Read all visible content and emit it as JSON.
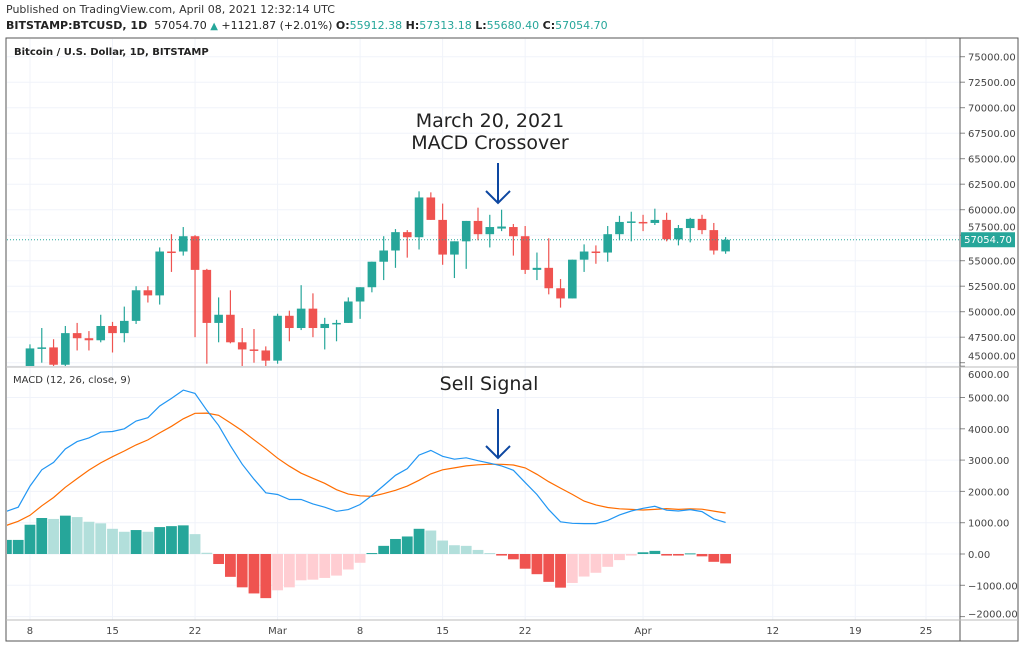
{
  "header": {
    "published": "Published on TradingView.com, April 08, 2021 12:32:14 UTC",
    "symbol": "BITSTAMP:BTCUSD, 1D",
    "last": "57054.70",
    "change": "+1121.87 (+2.01%)",
    "o_label": "O:",
    "o": "55912.38",
    "h_label": "H:",
    "h": "57313.18",
    "l_label": "L:",
    "l": "55680.40",
    "c_label": "C:",
    "c": "57054.70"
  },
  "chart_title": "Bitcoin / U.S. Dollar, 1D, BITSTAMP",
  "macd_title": "MACD (12, 26, close, 9)",
  "annotations": {
    "top_line1": "March 20, 2021",
    "top_line2": "MACD Crossover",
    "bottom": "Sell Signal"
  },
  "price_label": "57054.70",
  "colors": {
    "up": "#26a69a",
    "down": "#ef5350",
    "up_light": "#b2dfdb",
    "down_light": "#ffcdd2",
    "macd": "#2196f3",
    "signal": "#ff6d00",
    "arrow": "#0d47a1"
  },
  "chart_data": [
    {
      "type": "candlestick",
      "title": "Bitcoin / U.S. Dollar, 1D, BITSTAMP",
      "ylim": [
        45000,
        75000
      ],
      "y_ticks": [
        "75000.00",
        "72500.00",
        "70000.00",
        "67500.00",
        "65000.00",
        "62500.00",
        "60000.00",
        "57500.00",
        "55000.00",
        "52500.00",
        "50000.00",
        "47500.00",
        "45000.00"
      ],
      "x_ticks": [
        {
          "label": "8",
          "day": 2
        },
        {
          "label": "15",
          "day": 9
        },
        {
          "label": "22",
          "day": 16
        },
        {
          "label": "Mar",
          "day": 23
        },
        {
          "label": "8",
          "day": 30
        },
        {
          "label": "15",
          "day": 37
        },
        {
          "label": "22",
          "day": 44
        },
        {
          "label": "Apr",
          "day": 54
        },
        {
          "label": "12",
          "day": 65
        },
        {
          "label": "19",
          "day": 72
        },
        {
          "label": "25",
          "day": 78
        }
      ],
      "first_day_index": 2,
      "dates_start": "Feb 8, 2021",
      "ohlc": [
        [
          38900,
          46800,
          38000,
          46400
        ],
        [
          46400,
          48400,
          45000,
          46500
        ],
        [
          46500,
          47300,
          43800,
          44800
        ],
        [
          44800,
          48600,
          43800,
          47900
        ],
        [
          47900,
          48900,
          46200,
          47400
        ],
        [
          47400,
          48100,
          46200,
          47200
        ],
        [
          47200,
          49700,
          47000,
          48600
        ],
        [
          48600,
          49000,
          46000,
          47900
        ],
        [
          47900,
          50500,
          47000,
          49100
        ],
        [
          49100,
          52500,
          48800,
          52100
        ],
        [
          52100,
          52500,
          50900,
          51600
        ],
        [
          51600,
          56300,
          50700,
          55900
        ],
        [
          55900,
          57600,
          53900,
          55850
        ],
        [
          55900,
          58300,
          55500,
          57400
        ],
        [
          57400,
          57500,
          47500,
          54100
        ],
        [
          54100,
          54200,
          44900,
          48900
        ],
        [
          48900,
          51400,
          47000,
          49700
        ],
        [
          49700,
          52100,
          46900,
          47000
        ],
        [
          47000,
          48400,
          44200,
          46300
        ],
        [
          46300,
          48300,
          45000,
          46200
        ],
        [
          46200,
          46600,
          43000,
          45200
        ],
        [
          45200,
          49800,
          44900,
          49600
        ],
        [
          49600,
          50100,
          47100,
          48400
        ],
        [
          48400,
          52600,
          48200,
          50300
        ],
        [
          50300,
          51800,
          47500,
          48400
        ],
        [
          48400,
          49400,
          46300,
          48800
        ],
        [
          48800,
          49200,
          47100,
          48900
        ],
        [
          48900,
          51400,
          48900,
          51000
        ],
        [
          51000,
          52400,
          49300,
          52400
        ],
        [
          52400,
          54900,
          51900,
          54900
        ],
        [
          54900,
          57400,
          53100,
          56000
        ],
        [
          56000,
          58100,
          54300,
          57800
        ],
        [
          57800,
          58000,
          55300,
          57300
        ],
        [
          57300,
          61800,
          56100,
          61200
        ],
        [
          61200,
          61700,
          59000,
          59000
        ],
        [
          59000,
          60600,
          54600,
          55600
        ],
        [
          55600,
          56900,
          53300,
          56900
        ],
        [
          56900,
          58900,
          54200,
          58900
        ],
        [
          58900,
          60200,
          57000,
          57600
        ],
        [
          57600,
          59500,
          56300,
          58300
        ],
        [
          58150,
          60000,
          57900,
          58350
        ],
        [
          58300,
          58600,
          55500,
          57400
        ],
        [
          57400,
          58400,
          53700,
          54100
        ],
        [
          54100,
          55800,
          53100,
          54300
        ],
        [
          54300,
          57200,
          51700,
          52300
        ],
        [
          52300,
          53200,
          50400,
          51300
        ],
        [
          51300,
          55100,
          51300,
          55100
        ],
        [
          55100,
          56600,
          53900,
          55900
        ],
        [
          55900,
          56500,
          54700,
          55800
        ],
        [
          55800,
          58400,
          54900,
          57600
        ],
        [
          57600,
          59400,
          57000,
          58800
        ],
        [
          58800,
          59800,
          56900,
          58850
        ],
        [
          58800,
          59500,
          57900,
          58700
        ],
        [
          58700,
          60100,
          58500,
          59000
        ],
        [
          59000,
          59700,
          56900,
          57100
        ],
        [
          57100,
          58500,
          56500,
          58200
        ],
        [
          58200,
          59200,
          56800,
          59100
        ],
        [
          59100,
          59500,
          57600,
          58000
        ],
        [
          58000,
          58700,
          55600,
          56000
        ],
        [
          55912.38,
          57313.18,
          55680.4,
          57054.7
        ]
      ]
    },
    {
      "type": "line+bar",
      "title": "MACD (12, 26, close, 9)",
      "ylim": [
        -2000,
        6000
      ],
      "y_ticks": [
        "6000.00",
        "5000.00",
        "4000.00",
        "3000.00",
        "2000.00",
        "1000.00",
        "0.00",
        "−1000.00",
        "−2000.00"
      ],
      "first_day_index": 0,
      "dates_start": "Feb 6, 2021",
      "macd": [
        1365,
        1495,
        2170,
        2690,
        2925,
        3355,
        3590,
        3710,
        3890,
        3915,
        4000,
        4250,
        4355,
        4730,
        4970,
        5235,
        5130,
        4590,
        4110,
        3460,
        2870,
        2390,
        1955,
        1900,
        1740,
        1740,
        1600,
        1495,
        1365,
        1420,
        1580,
        1870,
        2190,
        2515,
        2730,
        3160,
        3310,
        3120,
        3030,
        3075,
        2980,
        2900,
        2815,
        2675,
        2280,
        1900,
        1420,
        1030,
        980,
        970,
        970,
        1075,
        1250,
        1375,
        1460,
        1525,
        1400,
        1375,
        1420,
        1355,
        1120,
        1010
      ],
      "signal": [
        915,
        1045,
        1235,
        1540,
        1805,
        2130,
        2410,
        2680,
        2910,
        3110,
        3290,
        3485,
        3645,
        3870,
        4080,
        4320,
        4495,
        4500,
        4430,
        4190,
        3935,
        3650,
        3365,
        3060,
        2805,
        2580,
        2420,
        2260,
        2055,
        1915,
        1860,
        1840,
        1930,
        2035,
        2170,
        2355,
        2560,
        2690,
        2750,
        2815,
        2850,
        2870,
        2865,
        2845,
        2750,
        2545,
        2310,
        2105,
        1905,
        1690,
        1570,
        1485,
        1445,
        1425,
        1405,
        1425,
        1450,
        1425,
        1440,
        1430,
        1370,
        1310
      ],
      "histogram": [
        450,
        450,
        935,
        1150,
        1120,
        1225,
        1180,
        1030,
        980,
        805,
        710,
        765,
        710,
        860,
        890,
        915,
        635,
        40,
        -320,
        -730,
        -1065,
        -1260,
        -1410,
        -1160,
        -1065,
        -840,
        -820,
        -765,
        -690,
        -495,
        -280,
        30,
        260,
        480,
        560,
        805,
        750,
        430,
        280,
        260,
        130,
        30,
        -50,
        -170,
        -470,
        -645,
        -890,
        -1075,
        -925,
        -720,
        -600,
        -410,
        -195,
        -50,
        55,
        100,
        -50,
        -50,
        20,
        -75,
        -250,
        -300
      ]
    }
  ]
}
